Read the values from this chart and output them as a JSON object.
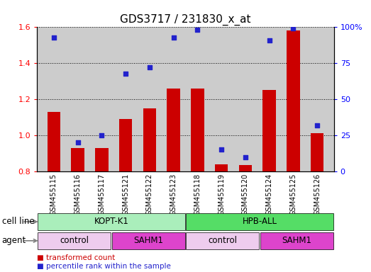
{
  "title": "GDS3717 / 231830_x_at",
  "samples": [
    "GSM455115",
    "GSM455116",
    "GSM455117",
    "GSM455121",
    "GSM455122",
    "GSM455123",
    "GSM455118",
    "GSM455119",
    "GSM455120",
    "GSM455124",
    "GSM455125",
    "GSM455126"
  ],
  "transformed_count": [
    1.13,
    0.93,
    0.93,
    1.09,
    1.15,
    1.26,
    1.26,
    0.84,
    0.835,
    1.25,
    1.58,
    1.01
  ],
  "percentile_rank": [
    93,
    20,
    25,
    68,
    72,
    93,
    98,
    15,
    10,
    91,
    99,
    32
  ],
  "ylim_left": [
    0.8,
    1.6
  ],
  "ylim_right": [
    0,
    100
  ],
  "yticks_left": [
    0.8,
    1.0,
    1.2,
    1.4,
    1.6
  ],
  "yticks_right": [
    0,
    25,
    50,
    75,
    100
  ],
  "bar_color": "#cc0000",
  "dot_color": "#2222cc",
  "bar_width": 0.55,
  "bg_color": "#cccccc",
  "cell_line_groups": [
    {
      "label": "KOPT-K1",
      "start": 0,
      "end": 6,
      "color": "#aaeebb"
    },
    {
      "label": "HPB-ALL",
      "start": 6,
      "end": 12,
      "color": "#55dd66"
    }
  ],
  "agent_groups": [
    {
      "label": "control",
      "start": 0,
      "end": 3,
      "color": "#eeccee"
    },
    {
      "label": "SAHM1",
      "start": 3,
      "end": 6,
      "color": "#dd44cc"
    },
    {
      "label": "control",
      "start": 6,
      "end": 9,
      "color": "#eeccee"
    },
    {
      "label": "SAHM1",
      "start": 9,
      "end": 12,
      "color": "#dd44cc"
    }
  ],
  "legend_bar_label": "transformed count",
  "legend_dot_label": "percentile rank within the sample",
  "cell_line_label": "cell line",
  "agent_label": "agent",
  "title_fontsize": 11,
  "tick_fontsize": 8,
  "label_fontsize": 8.5,
  "sample_fontsize": 7
}
